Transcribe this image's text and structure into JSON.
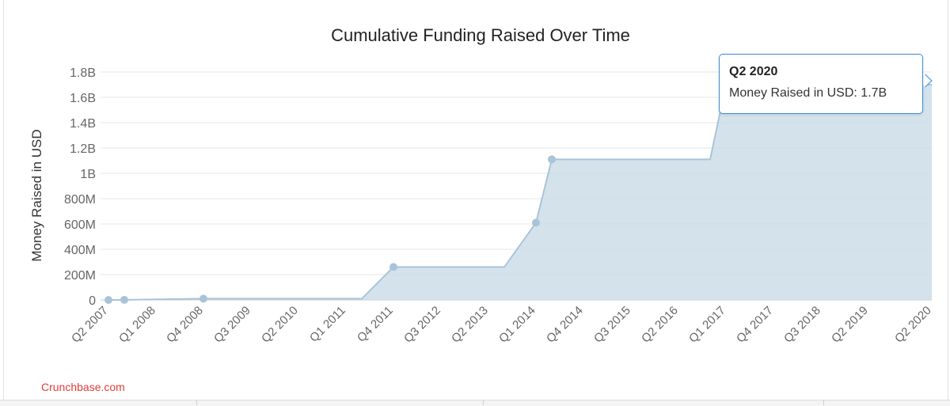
{
  "chart_data": {
    "type": "area",
    "title": "Cumulative Funding Raised Over Time",
    "xlabel": "",
    "ylabel": "Money Raised in USD",
    "x_tick_labels": [
      "Q2 2007",
      "Q1 2008",
      "Q4 2008",
      "Q3 2009",
      "Q2 2010",
      "Q1 2011",
      "Q4 2011",
      "Q3 2012",
      "Q2 2013",
      "Q1 2014",
      "Q4 2014",
      "Q3 2015",
      "Q2 2016",
      "Q1 2017",
      "Q4 2017",
      "Q3 2018",
      "Q2 2019",
      "Q2 2020"
    ],
    "y_tick_labels": [
      "0",
      "200M",
      "400M",
      "600M",
      "800M",
      "1B",
      "1.2B",
      "1.4B",
      "1.6B",
      "1.8B"
    ],
    "ylim": [
      0,
      1800000000
    ],
    "grid": true,
    "series": [
      {
        "points": [
          {
            "x": "Q2 2007",
            "y": 0,
            "marker": true
          },
          {
            "x": "Q3 2007",
            "y": 1000000,
            "marker": true
          },
          {
            "x": "Q4 2008",
            "y": 10000000,
            "marker": true
          },
          {
            "x": "Q2 2011",
            "y": 10000000,
            "marker": false
          },
          {
            "x": "Q4 2011",
            "y": 260000000,
            "marker": true
          },
          {
            "x": "Q3 2013",
            "y": 260000000,
            "marker": false
          },
          {
            "x": "Q1 2014",
            "y": 610000000,
            "marker": true
          },
          {
            "x": "Q2 2014",
            "y": 1110000000,
            "marker": true
          },
          {
            "x": "Q4 2016",
            "y": 1110000000,
            "marker": false
          },
          {
            "x": "Q1 2017",
            "y": 1700000000,
            "marker": false
          },
          {
            "x": "Q2 2020",
            "y": 1700000000,
            "marker": false
          }
        ]
      }
    ],
    "colors": {
      "line": "#a9c4d9",
      "fill": "#c6d8e6",
      "marker": "#a9c4d9",
      "grid": "#e6e6e6",
      "axis": "#cccccc",
      "tick_text": "#666666"
    }
  },
  "tooltip": {
    "title": "Q2 2020",
    "label": "Money Raised in USD",
    "value": "1.7B",
    "text": "Money Raised in USD: 1.7B"
  },
  "source": "Crunchbase.com"
}
